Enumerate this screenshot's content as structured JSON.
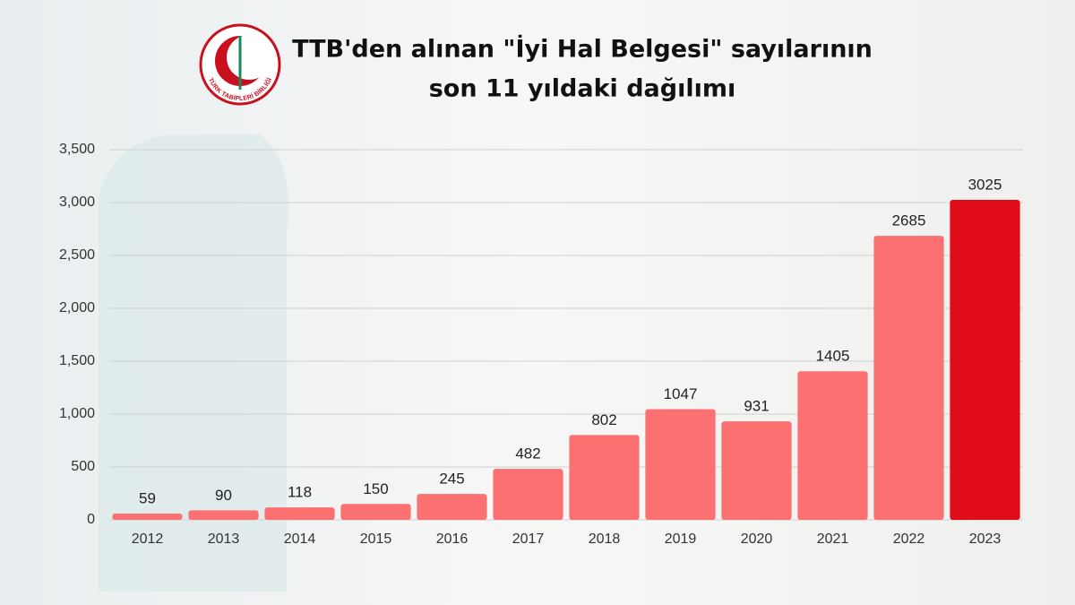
{
  "chart_data": {
    "type": "bar",
    "title": [
      "TTB'den alınan \"İyi Hal Belgesi\" sayılarının",
      "son 11 yıldaki dağılımı"
    ],
    "logo_text": "TÜRK TABİPLERİ BİRLİĞİ",
    "categories": [
      "2012",
      "2013",
      "2014",
      "2015",
      "2016",
      "2017",
      "2018",
      "2019",
      "2020",
      "2021",
      "2022",
      "2023"
    ],
    "values": [
      59,
      90,
      118,
      150,
      245,
      482,
      802,
      1047,
      931,
      1405,
      2685,
      3025
    ],
    "colors": [
      "#fb7070",
      "#fb7070",
      "#fb7070",
      "#fb7070",
      "#fb7070",
      "#fb7070",
      "#fb7070",
      "#fb7070",
      "#fb7070",
      "#fb7070",
      "#fb7070",
      "#e00d18"
    ],
    "ylim": [
      0,
      3500
    ],
    "yticks": [
      0,
      500,
      {
        "value": 1000,
        "label": "1,000"
      },
      {
        "value": 1500,
        "label": "1,500"
      },
      {
        "value": 2000,
        "label": "2,000"
      },
      {
        "value": 2500,
        "label": "2,500"
      },
      {
        "value": 3000,
        "label": "3,000"
      },
      {
        "value": 3500,
        "label": "3,500"
      }
    ],
    "grid": true
  }
}
